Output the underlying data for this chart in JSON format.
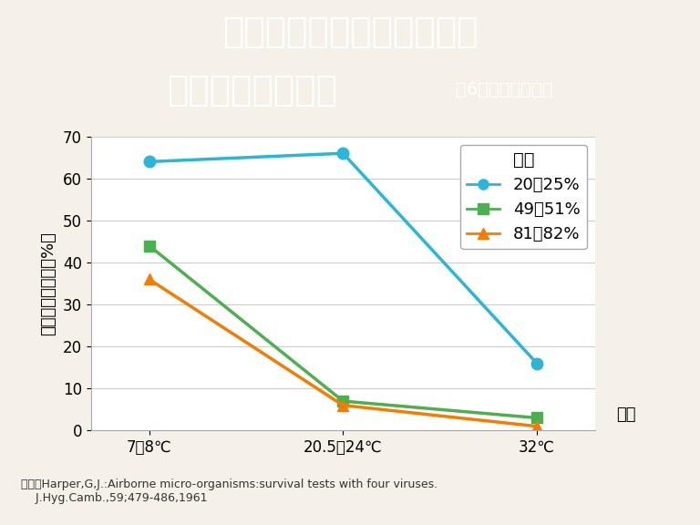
{
  "title_line1": "インフルエンザウイルスと",
  "title_line2": "湿度・温度の関係",
  "title_subtitle": "（6時間後生存率）",
  "xlabel": "温度",
  "ylabel": "ウイルス生存率（%）",
  "x_labels": [
    "7～8℃",
    "20.5～24℃",
    "32℃"
  ],
  "series": [
    {
      "label": "20～25%",
      "values": [
        64,
        66,
        16
      ],
      "color": "#29b6d9",
      "marker": "o",
      "linewidth": 2.5
    },
    {
      "label": "49～51%",
      "values": [
        44,
        7,
        3
      ],
      "color": "#4caf50",
      "marker": "s",
      "linewidth": 2.5
    },
    {
      "label": "81～82%",
      "values": [
        36,
        6,
        1
      ],
      "color": "#f57c00",
      "marker": "^",
      "linewidth": 2.5
    }
  ],
  "legend_title": "湿度",
  "ylim": [
    0,
    70
  ],
  "yticks": [
    0,
    10,
    20,
    30,
    40,
    50,
    60,
    70
  ],
  "bg_color": "#f5f0e8",
  "title_bg_color": "#8888aa",
  "plot_bg_color": "#ffffff",
  "citation": "出典／Harper,G,J.:Airborne micro-organisms:survival tests with four viruses.\n    J.Hyg.Camb.,59;479-486,1961",
  "title_fontsize": 28,
  "subtitle_fontsize": 14,
  "axis_label_fontsize": 13,
  "tick_fontsize": 12,
  "legend_fontsize": 13,
  "citation_fontsize": 9
}
